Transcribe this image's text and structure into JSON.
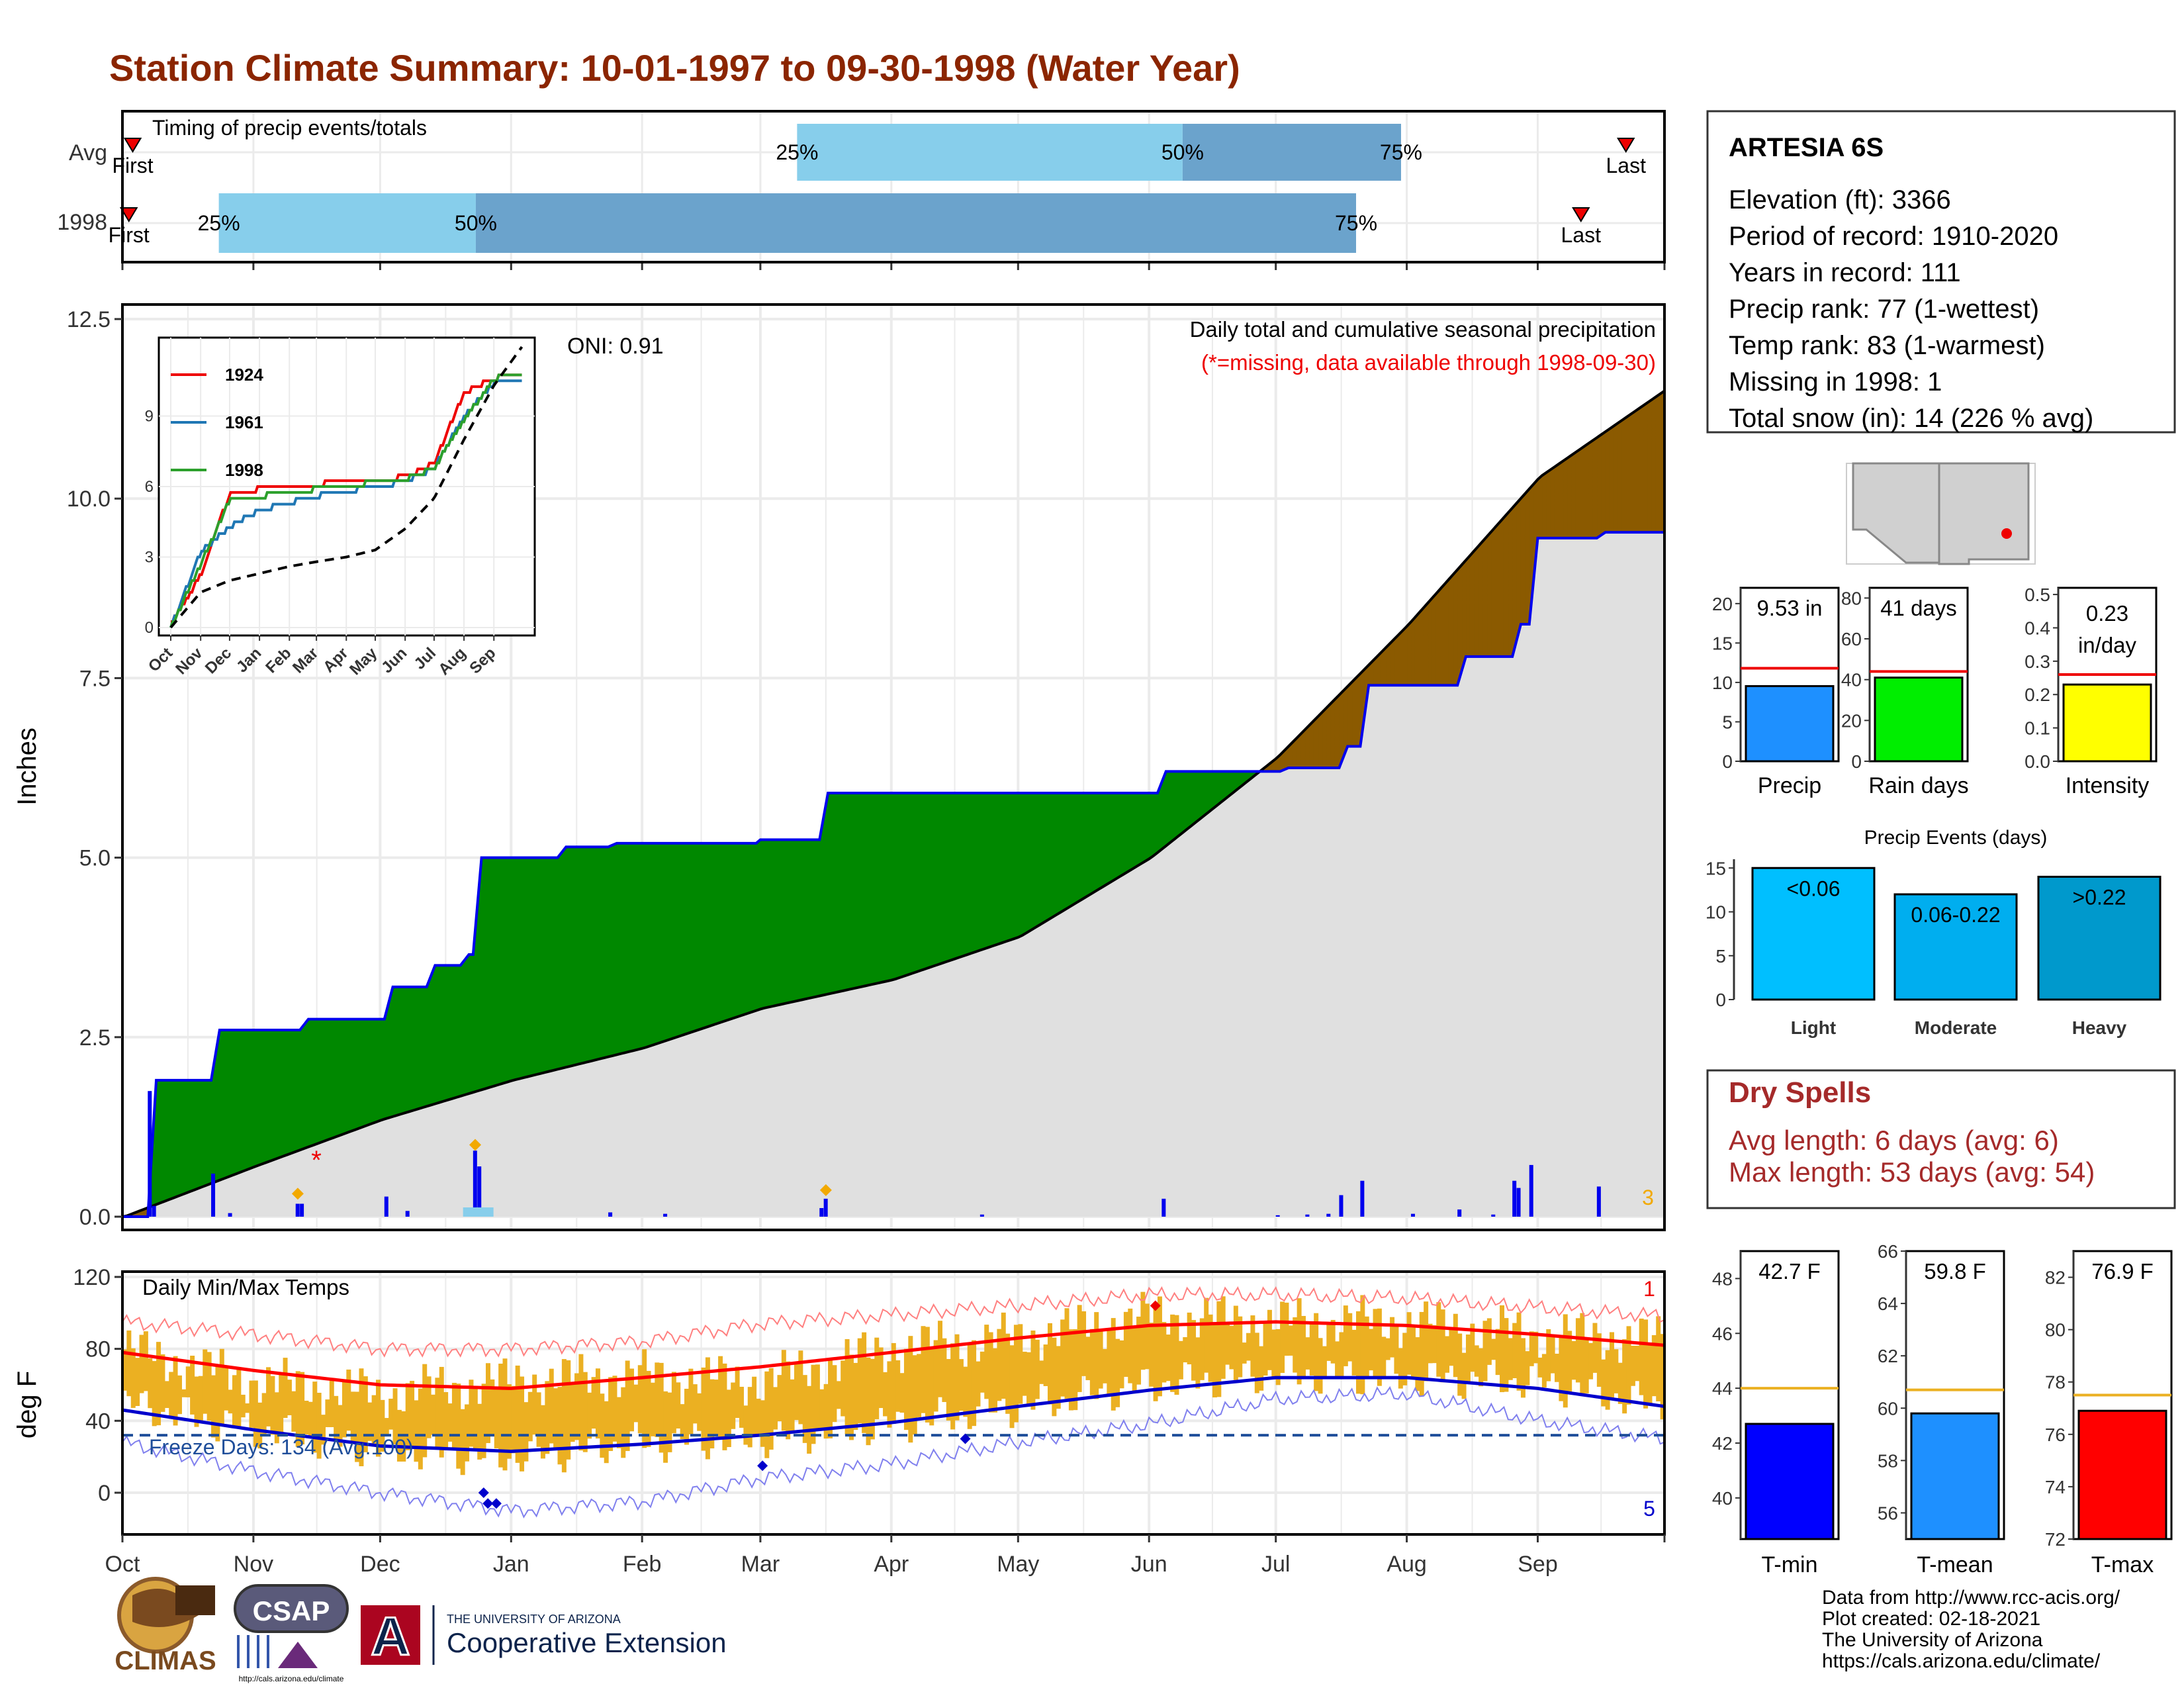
{
  "page_title": "Station Climate Summary: 10-01-1997 to 09-30-1998 (Water Year)",
  "colors": {
    "title": "#8B2500",
    "dry_red": "#A52A2A",
    "precip_light": "#87CEEB",
    "precip_dark": "#6BA3CC",
    "surplus": "#008800",
    "deficit": "#8B5A00",
    "normal_fill": "#E0E0E0",
    "cum_line": "#0000EE",
    "temp_bar": "#EBB022",
    "tmax_avg": "#FF0000",
    "tmin_avg": "#0000CC",
    "freeze": "#1F4E9A"
  },
  "timing_panel": {
    "title": "Timing of precip events/totals",
    "row_labels": [
      "Avg",
      "1998"
    ],
    "avg": {
      "first": 0.08,
      "p25": 5.25,
      "p50": 8.25,
      "p75": 9.95,
      "last": 11.7,
      "first_label": "First",
      "last_label": "Last"
    },
    "y1998": {
      "first": 0.05,
      "p25": 0.75,
      "p50": 2.75,
      "p75": 9.6,
      "last": 11.35,
      "first_label": "First",
      "last_label": "Last"
    },
    "pct_labels": [
      "25%",
      "50%",
      "75%"
    ]
  },
  "months": [
    "Oct",
    "Nov",
    "Dec",
    "Jan",
    "Feb",
    "Mar",
    "Apr",
    "May",
    "Jun",
    "Jul",
    "Aug",
    "Sep"
  ],
  "precip_panel": {
    "ylabel": "Inches",
    "ylim": [
      0,
      12.5
    ],
    "yticks": [
      "0.0",
      "2.5",
      "5.0",
      "7.5",
      "10.0",
      "12.5"
    ],
    "title": "Daily total and cumulative seasonal precipitation",
    "subtitle": "(*=missing, data available through 1998-09-30)",
    "oni": "ONI: 0.91",
    "missing_marker": "*",
    "corner_count": "3"
  },
  "inset": {
    "yticks": [
      "0",
      "3",
      "6",
      "9"
    ],
    "months": [
      "Oct",
      "Nov",
      "Dec",
      "Jan",
      "Feb",
      "Mar",
      "Apr",
      "May",
      "Jun",
      "Jul",
      "Aug",
      "Sep"
    ],
    "legend": [
      {
        "name": "1924",
        "color": "#EE0000"
      },
      {
        "name": "1961",
        "color": "#1F77B4"
      },
      {
        "name": "1998",
        "color": "#2CA02C"
      }
    ]
  },
  "temp_panel": {
    "ylabel": "deg F",
    "ylim": [
      -20,
      120
    ],
    "yticks": [
      "0",
      "40",
      "80",
      "120"
    ],
    "title": "Daily Min/Max Temps",
    "freeze_label": "Freeze Days: 134 (Avg:100)",
    "corner_top": "1",
    "corner_bottom": "5"
  },
  "station_box": {
    "name": "ARTESIA 6S",
    "lines": [
      "Elevation (ft): 3366",
      "Period of record: 1910-2020",
      "Years in record: 111",
      "Precip rank: 77 (1-wettest)",
      "Temp rank: 83 (1-warmest)",
      "Missing in 1998: 1",
      "Total snow (in): 14 (226 % avg)"
    ]
  },
  "mini_bars": [
    {
      "label": "Precip",
      "value": 9.53,
      "avg": 11.8,
      "value_text": "9.53 in",
      "ymax": 22,
      "ticks": [
        "0",
        "5",
        "10",
        "15",
        "20"
      ],
      "tick_vals": [
        0,
        5,
        10,
        15,
        20
      ],
      "color": "#1E90FF"
    },
    {
      "label": "Rain days",
      "value": 41,
      "avg": 44,
      "value_text": "41 days",
      "ymax": 85,
      "ticks": [
        "0",
        "20",
        "40",
        "60",
        "80"
      ],
      "tick_vals": [
        0,
        20,
        40,
        60,
        80
      ],
      "color": "#00EE00"
    },
    {
      "label": "Intensity",
      "value": 0.23,
      "avg": 0.26,
      "value_text": "0.23 in/day",
      "ymax": 0.52,
      "ticks": [
        "0.0",
        "0.1",
        "0.2",
        "0.3",
        "0.4",
        "0.5"
      ],
      "tick_vals": [
        0,
        0.1,
        0.2,
        0.3,
        0.4,
        0.5
      ],
      "color": "#FFFF00"
    }
  ],
  "precip_events": {
    "title": "Precip Events (days)",
    "yticks": [
      "0",
      "5",
      "10",
      "15"
    ],
    "ymax": 16,
    "bars": [
      {
        "category": "Light",
        "value": 15,
        "text": "<0.06",
        "color": "#00BFFF"
      },
      {
        "category": "Moderate",
        "value": 12,
        "text": "0.06-0.22",
        "color": "#00AEEF"
      },
      {
        "category": "Heavy",
        "value": 14,
        "text": ">0.22",
        "color": "#0099CC"
      }
    ]
  },
  "dry_spells": {
    "title": "Dry Spells",
    "avg_length": "Avg length: 6 days (avg: 6)",
    "max_length": "Max length: 53 days (avg: 54)"
  },
  "temp_bars": [
    {
      "label": "T-min",
      "value": 42.7,
      "avg": 44.0,
      "value_text": "42.7 F",
      "ymin": 38.5,
      "ymax": 49,
      "ticks": [
        "40",
        "42",
        "44",
        "46",
        "48"
      ],
      "tick_vals": [
        40,
        42,
        44,
        46,
        48
      ],
      "color": "#0000FF"
    },
    {
      "label": "T-mean",
      "value": 59.8,
      "avg": 60.7,
      "value_text": "59.8 F",
      "ymin": 55,
      "ymax": 66,
      "ticks": [
        "56",
        "58",
        "60",
        "62",
        "64",
        "66"
      ],
      "tick_vals": [
        56,
        58,
        60,
        62,
        64,
        66
      ],
      "color": "#1E90FF"
    },
    {
      "label": "T-max",
      "value": 76.9,
      "avg": 77.5,
      "value_text": "76.9 F",
      "ymin": 72,
      "ymax": 83,
      "ticks": [
        "72",
        "74",
        "76",
        "78",
        "80",
        "82"
      ],
      "tick_vals": [
        72,
        74,
        76,
        78,
        80,
        82
      ],
      "color": "#FF0000"
    }
  ],
  "footer": {
    "lines": [
      "Data from http://www.rcc-acis.org/",
      "Plot created: 02-18-2021",
      "The University of Arizona",
      "https://cals.arizona.edu/climate/"
    ],
    "logo_climas": "CLIMAS",
    "logo_csap": "CSAP",
    "logo_csap_url": "http://cals.arizona.edu/climate",
    "ua_line1": "THE UNIVERSITY OF ARIZONA",
    "ua_line2": "Cooperative Extension",
    "ua_letter": "A"
  },
  "chart_data": [
    {
      "type": "area",
      "title": "Daily total and cumulative seasonal precipitation",
      "xlabel": "",
      "ylabel": "Inches",
      "ylim": [
        0,
        12.5
      ],
      "series": [
        {
          "name": "normal cumulative",
          "x": [
            "Oct 1",
            "Nov 1",
            "Dec 1",
            "Jan 1",
            "Feb 1",
            "Mar 1",
            "Apr 1",
            "May 1",
            "Jun 1",
            "Jul 1",
            "Aug 1",
            "Sep 1",
            "Sep 30"
          ],
          "values": [
            0.0,
            0.7,
            1.35,
            1.9,
            2.35,
            2.9,
            3.3,
            3.9,
            5.0,
            6.4,
            8.25,
            10.3,
            11.5
          ]
        },
        {
          "name": "1998 cumulative",
          "x": [
            "Oct 1",
            "Oct 7",
            "Oct 8",
            "Oct 22",
            "Oct 23",
            "Nov 12",
            "Nov 13",
            "Dec 2",
            "Dec 3",
            "Dec 12",
            "Dec 13",
            "Dec 20",
            "Dec 21",
            "Dec 23",
            "Dec 24",
            "Jan 12",
            "Jan 13",
            "Jan 24",
            "Jan 25",
            "Feb 28",
            "Feb 29",
            "Mar 15",
            "Mar 16",
            "Jun 3",
            "Jun 4",
            "Jul 2",
            "Jul 3",
            "Jul 16",
            "Jul 17",
            "Jul 21",
            "Jul 22",
            "Aug 13",
            "Aug 14",
            "Aug 26",
            "Aug 27",
            "Aug 30",
            "Aug 31",
            "Sep 15",
            "Sep 16",
            "Sep 30"
          ],
          "values": [
            0.0,
            0.0,
            1.9,
            1.9,
            2.6,
            2.6,
            2.75,
            2.75,
            3.2,
            3.2,
            3.5,
            3.5,
            3.65,
            3.65,
            5.0,
            5.0,
            5.15,
            5.15,
            5.2,
            5.2,
            5.25,
            5.25,
            5.9,
            5.9,
            6.2,
            6.2,
            6.25,
            6.25,
            6.55,
            6.55,
            7.4,
            7.4,
            7.8,
            7.8,
            8.25,
            8.25,
            9.45,
            9.45,
            9.53,
            9.53
          ]
        }
      ],
      "daily_precip": [
        {
          "date": "Oct 7",
          "value": 1.75
        },
        {
          "date": "Oct 8",
          "value": 0.15
        },
        {
          "date": "Oct 22",
          "value": 0.6
        },
        {
          "date": "Oct 26",
          "value": 0.05
        },
        {
          "date": "Nov 11",
          "value": 0.18
        },
        {
          "date": "Nov 12",
          "value": 0.18
        },
        {
          "date": "Dec 2",
          "value": 0.28
        },
        {
          "date": "Dec 7",
          "value": 0.08
        },
        {
          "date": "Dec 22",
          "value": 0.1
        },
        {
          "date": "Dec 23",
          "value": 0.92
        },
        {
          "date": "Dec 24",
          "value": 0.7
        },
        {
          "date": "Jan 24",
          "value": 0.06
        },
        {
          "date": "Feb 6",
          "value": 0.04
        },
        {
          "date": "Mar 15",
          "value": 0.12
        },
        {
          "date": "Mar 16",
          "value": 0.25
        },
        {
          "date": "Apr 22",
          "value": 0.03
        },
        {
          "date": "Jun 4",
          "value": 0.25
        },
        {
          "date": "Jul 1",
          "value": 0.02
        },
        {
          "date": "Jul 8",
          "value": 0.03
        },
        {
          "date": "Jul 13",
          "value": 0.04
        },
        {
          "date": "Jul 16",
          "value": 0.3
        },
        {
          "date": "Jul 21",
          "value": 0.5
        },
        {
          "date": "Aug 2",
          "value": 0.04
        },
        {
          "date": "Aug 13",
          "value": 0.1
        },
        {
          "date": "Aug 21",
          "value": 0.03
        },
        {
          "date": "Aug 26",
          "value": 0.5
        },
        {
          "date": "Aug 27",
          "value": 0.4
        },
        {
          "date": "Aug 30",
          "value": 0.72
        },
        {
          "date": "Sep 15",
          "value": 0.42
        }
      ]
    },
    {
      "type": "line",
      "title": "",
      "ylim": [
        0,
        12
      ],
      "x": [
        "Oct",
        "Nov",
        "Dec",
        "Jan",
        "Feb",
        "Mar",
        "Apr",
        "May",
        "Jun",
        "Jul",
        "Aug",
        "Sep",
        "Sep 30"
      ],
      "series": [
        {
          "name": "1924",
          "values": [
            0.2,
            2.2,
            5.7,
            5.9,
            6.0,
            6.1,
            6.2,
            6.3,
            6.4,
            7.0,
            10.0,
            10.6,
            10.8
          ]
        },
        {
          "name": "1961",
          "values": [
            0.0,
            3.2,
            4.3,
            5.0,
            5.3,
            5.6,
            5.8,
            6.0,
            6.2,
            6.8,
            9.0,
            10.4,
            10.5
          ]
        },
        {
          "name": "1998",
          "values": [
            0.0,
            2.7,
            5.4,
            5.6,
            5.7,
            5.9,
            6.0,
            6.2,
            6.3,
            6.8,
            8.8,
            10.6,
            10.8
          ]
        },
        {
          "name": "avg",
          "values": [
            0.0,
            1.5,
            2.0,
            2.3,
            2.6,
            2.8,
            3.0,
            3.3,
            4.2,
            5.5,
            8.0,
            10.3,
            12.0
          ]
        }
      ]
    },
    {
      "type": "bar",
      "title": "Daily Min/Max Temps",
      "ylabel": "deg F",
      "ylim": [
        -20,
        120
      ],
      "x": [
        "Oct",
        "Nov",
        "Dec",
        "Jan",
        "Feb",
        "Mar",
        "Apr",
        "May",
        "Jun",
        "Jul",
        "Aug",
        "Sep",
        "Sep 30"
      ],
      "series": [
        {
          "name": "avg max",
          "values": [
            78,
            68,
            60,
            58,
            64,
            70,
            78,
            86,
            93,
            95,
            93,
            88,
            82
          ]
        },
        {
          "name": "avg min",
          "values": [
            46,
            35,
            26,
            23,
            27,
            32,
            39,
            48,
            57,
            64,
            64,
            58,
            48
          ]
        },
        {
          "name": "record max",
          "values": [
            95,
            88,
            80,
            80,
            84,
            94,
            99,
            104,
            110,
            110,
            108,
            103,
            98
          ]
        },
        {
          "name": "record min",
          "values": [
            28,
            12,
            0,
            -10,
            -5,
            8,
            16,
            28,
            38,
            52,
            55,
            40,
            30
          ]
        },
        {
          "name": "1998 max",
          "values": [
            80,
            62,
            55,
            62,
            65,
            62,
            80,
            86,
            98,
            95,
            95,
            88,
            85
          ]
        },
        {
          "name": "1998 min",
          "values": [
            50,
            35,
            24,
            20,
            28,
            30,
            38,
            48,
            60,
            66,
            64,
            62,
            48
          ]
        }
      ]
    }
  ]
}
